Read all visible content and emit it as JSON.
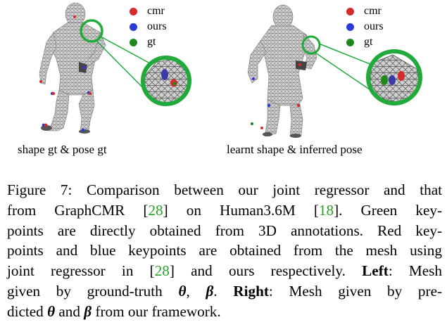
{
  "legend": {
    "cmr": {
      "label": "cmr",
      "color": "#d62b2b"
    },
    "ours": {
      "label": "ours",
      "color": "#2b3bd6"
    },
    "gt": {
      "label": "gt",
      "color": "#1e8a1e"
    }
  },
  "panels": {
    "left": {
      "caption": "shape gt & pose gt"
    },
    "right": {
      "caption": "learnt shape & inferred pose"
    }
  },
  "caption": {
    "line1": {
      "pre": "Figure 7: Comparison between our joint regressor and that"
    },
    "line2": {
      "pre": "from GraphCMR [",
      "ref1": "28",
      "mid": "] on Human3.6M [",
      "ref2": "18",
      "post": "].  Green key-"
    },
    "line3": {
      "pre": "points are directly obtained from 3D annotations. Red key-"
    },
    "line4": {
      "pre": "points and blue keypoints are obtained from the mesh using"
    },
    "line5": {
      "pre": "joint regressor in [",
      "ref": "28",
      "mid": "] and ours respectively. ",
      "bold": "Left",
      "post": ": Mesh"
    },
    "line6": {
      "pre": "given by ground-truth ",
      "theta": "θ",
      "comma": ", ",
      "beta": "β",
      "mid": ".  ",
      "bold": "Right",
      "post": ": Mesh given by pre-"
    },
    "line7": {
      "pre": "dicted ",
      "theta": "θ",
      "and": " and ",
      "beta": "β",
      "post": " from our framework."
    }
  },
  "colors": {
    "zoom_ring": "#1faa3a",
    "link_ref": "#27a327",
    "mesh_fill": "#cfcfcf",
    "mesh_line": "#5a5a5a"
  }
}
